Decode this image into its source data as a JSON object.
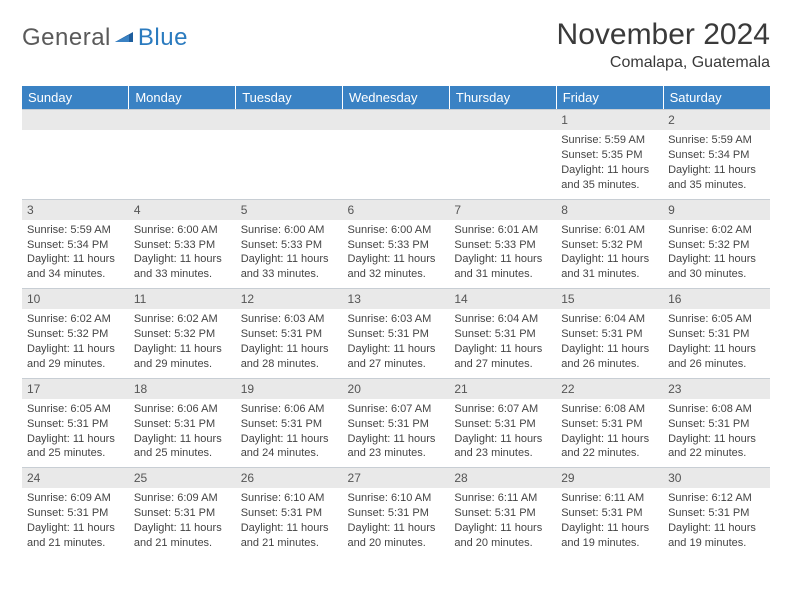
{
  "logo": {
    "text_general": "General",
    "text_blue": "Blue"
  },
  "title": "November 2024",
  "location": "Comalapa, Guatemala",
  "day_headers": [
    "Sunday",
    "Monday",
    "Tuesday",
    "Wednesday",
    "Thursday",
    "Friday",
    "Saturday"
  ],
  "colors": {
    "header_bg": "#3a82c4",
    "header_text": "#ffffff",
    "daynum_bg": "#e9e9e9",
    "divider": "#c8ced4",
    "text": "#444444",
    "logo_gray": "#5a5a5a",
    "logo_blue": "#2b7bbf"
  },
  "weeks": [
    [
      null,
      null,
      null,
      null,
      null,
      {
        "n": "1",
        "sr": "Sunrise: 5:59 AM",
        "ss": "Sunset: 5:35 PM",
        "dl": "Daylight: 11 hours and 35 minutes."
      },
      {
        "n": "2",
        "sr": "Sunrise: 5:59 AM",
        "ss": "Sunset: 5:34 PM",
        "dl": "Daylight: 11 hours and 35 minutes."
      }
    ],
    [
      {
        "n": "3",
        "sr": "Sunrise: 5:59 AM",
        "ss": "Sunset: 5:34 PM",
        "dl": "Daylight: 11 hours and 34 minutes."
      },
      {
        "n": "4",
        "sr": "Sunrise: 6:00 AM",
        "ss": "Sunset: 5:33 PM",
        "dl": "Daylight: 11 hours and 33 minutes."
      },
      {
        "n": "5",
        "sr": "Sunrise: 6:00 AM",
        "ss": "Sunset: 5:33 PM",
        "dl": "Daylight: 11 hours and 33 minutes."
      },
      {
        "n": "6",
        "sr": "Sunrise: 6:00 AM",
        "ss": "Sunset: 5:33 PM",
        "dl": "Daylight: 11 hours and 32 minutes."
      },
      {
        "n": "7",
        "sr": "Sunrise: 6:01 AM",
        "ss": "Sunset: 5:33 PM",
        "dl": "Daylight: 11 hours and 31 minutes."
      },
      {
        "n": "8",
        "sr": "Sunrise: 6:01 AM",
        "ss": "Sunset: 5:32 PM",
        "dl": "Daylight: 11 hours and 31 minutes."
      },
      {
        "n": "9",
        "sr": "Sunrise: 6:02 AM",
        "ss": "Sunset: 5:32 PM",
        "dl": "Daylight: 11 hours and 30 minutes."
      }
    ],
    [
      {
        "n": "10",
        "sr": "Sunrise: 6:02 AM",
        "ss": "Sunset: 5:32 PM",
        "dl": "Daylight: 11 hours and 29 minutes."
      },
      {
        "n": "11",
        "sr": "Sunrise: 6:02 AM",
        "ss": "Sunset: 5:32 PM",
        "dl": "Daylight: 11 hours and 29 minutes."
      },
      {
        "n": "12",
        "sr": "Sunrise: 6:03 AM",
        "ss": "Sunset: 5:31 PM",
        "dl": "Daylight: 11 hours and 28 minutes."
      },
      {
        "n": "13",
        "sr": "Sunrise: 6:03 AM",
        "ss": "Sunset: 5:31 PM",
        "dl": "Daylight: 11 hours and 27 minutes."
      },
      {
        "n": "14",
        "sr": "Sunrise: 6:04 AM",
        "ss": "Sunset: 5:31 PM",
        "dl": "Daylight: 11 hours and 27 minutes."
      },
      {
        "n": "15",
        "sr": "Sunrise: 6:04 AM",
        "ss": "Sunset: 5:31 PM",
        "dl": "Daylight: 11 hours and 26 minutes."
      },
      {
        "n": "16",
        "sr": "Sunrise: 6:05 AM",
        "ss": "Sunset: 5:31 PM",
        "dl": "Daylight: 11 hours and 26 minutes."
      }
    ],
    [
      {
        "n": "17",
        "sr": "Sunrise: 6:05 AM",
        "ss": "Sunset: 5:31 PM",
        "dl": "Daylight: 11 hours and 25 minutes."
      },
      {
        "n": "18",
        "sr": "Sunrise: 6:06 AM",
        "ss": "Sunset: 5:31 PM",
        "dl": "Daylight: 11 hours and 25 minutes."
      },
      {
        "n": "19",
        "sr": "Sunrise: 6:06 AM",
        "ss": "Sunset: 5:31 PM",
        "dl": "Daylight: 11 hours and 24 minutes."
      },
      {
        "n": "20",
        "sr": "Sunrise: 6:07 AM",
        "ss": "Sunset: 5:31 PM",
        "dl": "Daylight: 11 hours and 23 minutes."
      },
      {
        "n": "21",
        "sr": "Sunrise: 6:07 AM",
        "ss": "Sunset: 5:31 PM",
        "dl": "Daylight: 11 hours and 23 minutes."
      },
      {
        "n": "22",
        "sr": "Sunrise: 6:08 AM",
        "ss": "Sunset: 5:31 PM",
        "dl": "Daylight: 11 hours and 22 minutes."
      },
      {
        "n": "23",
        "sr": "Sunrise: 6:08 AM",
        "ss": "Sunset: 5:31 PM",
        "dl": "Daylight: 11 hours and 22 minutes."
      }
    ],
    [
      {
        "n": "24",
        "sr": "Sunrise: 6:09 AM",
        "ss": "Sunset: 5:31 PM",
        "dl": "Daylight: 11 hours and 21 minutes."
      },
      {
        "n": "25",
        "sr": "Sunrise: 6:09 AM",
        "ss": "Sunset: 5:31 PM",
        "dl": "Daylight: 11 hours and 21 minutes."
      },
      {
        "n": "26",
        "sr": "Sunrise: 6:10 AM",
        "ss": "Sunset: 5:31 PM",
        "dl": "Daylight: 11 hours and 21 minutes."
      },
      {
        "n": "27",
        "sr": "Sunrise: 6:10 AM",
        "ss": "Sunset: 5:31 PM",
        "dl": "Daylight: 11 hours and 20 minutes."
      },
      {
        "n": "28",
        "sr": "Sunrise: 6:11 AM",
        "ss": "Sunset: 5:31 PM",
        "dl": "Daylight: 11 hours and 20 minutes."
      },
      {
        "n": "29",
        "sr": "Sunrise: 6:11 AM",
        "ss": "Sunset: 5:31 PM",
        "dl": "Daylight: 11 hours and 19 minutes."
      },
      {
        "n": "30",
        "sr": "Sunrise: 6:12 AM",
        "ss": "Sunset: 5:31 PM",
        "dl": "Daylight: 11 hours and 19 minutes."
      }
    ]
  ]
}
